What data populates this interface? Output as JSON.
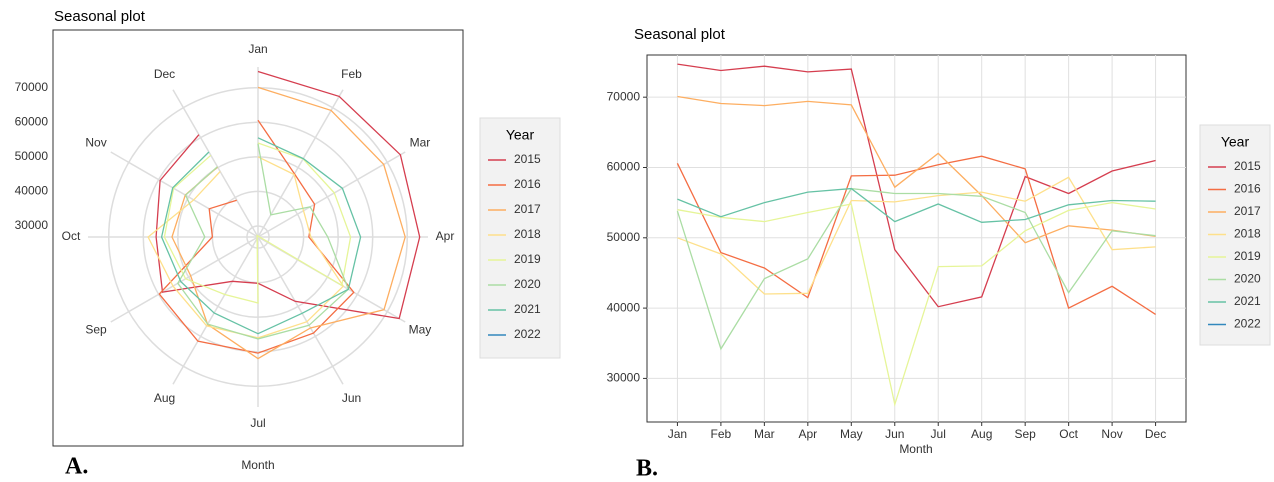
{
  "chart_data": [
    {
      "type": "polar",
      "title": "Seasonal plot",
      "xlabel": "Month",
      "legend_title": "Year",
      "panel_label": "A.",
      "categories": [
        "Jan",
        "Feb",
        "Mar",
        "Apr",
        "May",
        "Jun",
        "Jul",
        "Aug",
        "Sep",
        "Oct",
        "Nov",
        "Dec"
      ],
      "ylim": [
        26800,
        76000
      ],
      "yticks": [
        30000,
        40000,
        50000,
        60000,
        70000
      ],
      "grid": true,
      "series": [
        {
          "name": "2015",
          "color": "#D53E4F",
          "values": [
            74700,
            73800,
            74400,
            73600,
            74000,
            48300,
            40200,
            41600,
            58700,
            56300,
            59500,
            61000
          ]
        },
        {
          "name": "2016",
          "color": "#F46D43",
          "values": [
            60600,
            47900,
            45700,
            41500,
            58800,
            58900,
            60400,
            61600,
            59800,
            40000,
            43100,
            39100
          ]
        },
        {
          "name": "2017",
          "color": "#FDAE61",
          "values": [
            70100,
            69100,
            68800,
            69400,
            68900,
            57200,
            62000,
            56000,
            49300,
            51700,
            51100,
            50200
          ]
        },
        {
          "name": "2018",
          "color": "#FEE08B",
          "values": [
            50000,
            47700,
            42000,
            42100,
            55300,
            55100,
            56000,
            56500,
            55200,
            58600,
            48300,
            48700
          ]
        },
        {
          "name": "2019",
          "color": "#E6F598",
          "values": [
            54000,
            52900,
            52300,
            53600,
            54800,
            26300,
            45900,
            46000,
            51000,
            53900,
            55000,
            54100
          ]
        },
        {
          "name": "2020",
          "color": "#ABDDA4",
          "values": [
            53800,
            34200,
            44200,
            47000,
            57000,
            56300,
            56300,
            55900,
            53600,
            42200,
            51000,
            50300
          ]
        },
        {
          "name": "2021",
          "color": "#66C2A5",
          "values": [
            55500,
            53000,
            55000,
            56500,
            57000,
            52300,
            54800,
            52200,
            52600,
            54700,
            55300,
            55200
          ]
        },
        {
          "name": "2022",
          "color": "#3288BD",
          "values": [
            null,
            null,
            null,
            null,
            null,
            null,
            null,
            null,
            null,
            null,
            null,
            null
          ]
        }
      ]
    },
    {
      "type": "line",
      "title": "Seasonal plot",
      "xlabel": "Month",
      "legend_title": "Year",
      "panel_label": "B.",
      "categories": [
        "Jan",
        "Feb",
        "Mar",
        "Apr",
        "May",
        "Jun",
        "Jul",
        "Aug",
        "Sep",
        "Oct",
        "Nov",
        "Dec"
      ],
      "ylim": [
        23800,
        76000
      ],
      "yticks": [
        30000,
        40000,
        50000,
        60000,
        70000
      ],
      "grid": true,
      "series": [
        {
          "name": "2015",
          "color": "#D53E4F",
          "values": [
            74700,
            73800,
            74400,
            73600,
            74000,
            48300,
            40200,
            41600,
            58700,
            56300,
            59500,
            61000
          ]
        },
        {
          "name": "2016",
          "color": "#F46D43",
          "values": [
            60600,
            47900,
            45700,
            41500,
            58800,
            58900,
            60400,
            61600,
            59800,
            40000,
            43100,
            39100
          ]
        },
        {
          "name": "2017",
          "color": "#FDAE61",
          "values": [
            70100,
            69100,
            68800,
            69400,
            68900,
            57200,
            62000,
            56000,
            49300,
            51700,
            51100,
            50200
          ]
        },
        {
          "name": "2018",
          "color": "#FEE08B",
          "values": [
            50000,
            47700,
            42000,
            42100,
            55300,
            55100,
            56000,
            56500,
            55200,
            58600,
            48300,
            48700
          ]
        },
        {
          "name": "2019",
          "color": "#E6F598",
          "values": [
            54000,
            52900,
            52300,
            53600,
            54800,
            26300,
            45900,
            46000,
            51000,
            53900,
            55000,
            54100
          ]
        },
        {
          "name": "2020",
          "color": "#ABDDA4",
          "values": [
            53800,
            34200,
            44200,
            47000,
            57000,
            56300,
            56300,
            55900,
            53600,
            42200,
            51000,
            50300
          ]
        },
        {
          "name": "2021",
          "color": "#66C2A5",
          "values": [
            55500,
            53000,
            55000,
            56500,
            57000,
            52300,
            54800,
            52200,
            52600,
            54700,
            55300,
            55200
          ]
        },
        {
          "name": "2022",
          "color": "#3288BD",
          "values": [
            null,
            null,
            null,
            null,
            null,
            null,
            null,
            null,
            null,
            null,
            null,
            null
          ]
        }
      ]
    }
  ]
}
